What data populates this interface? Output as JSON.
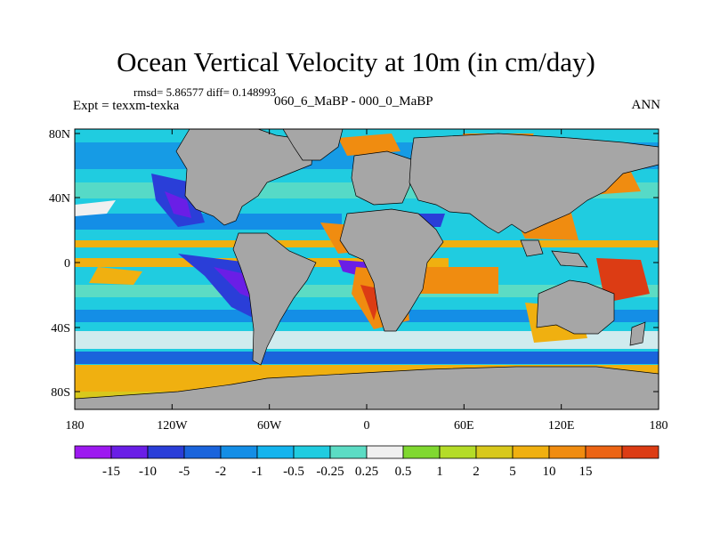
{
  "title": "Ocean Vertical Velocity at 10m (in cm/day)",
  "stats": "rmsd= 5.86577 diff= 0.148993",
  "experiment": "Expt = texxm-texka",
  "case_label": "060_6_MaBP - 000_0_MaBP",
  "season": "ANN",
  "lat_ticks": [
    "80N",
    "40N",
    "0",
    "40S",
    "80S"
  ],
  "lon_ticks": [
    "180",
    "120W",
    "60W",
    "0",
    "60E",
    "120E",
    "180"
  ],
  "colorbar": {
    "colors": [
      "#9d19f0",
      "#6a1ee6",
      "#2a3ed8",
      "#1a64dc",
      "#148ee6",
      "#14b4ee",
      "#20cce0",
      "#5cdcc4",
      "#f0f0f0",
      "#80d830",
      "#b4dc28",
      "#d8c81c",
      "#f0b010",
      "#f08c10",
      "#ec6414",
      "#dc3c14"
    ],
    "labels": [
      "-15",
      "-10",
      "-5",
      "-2",
      "-1",
      "-0.5",
      "-0.25",
      "0.25",
      "0.5",
      "1",
      "2",
      "5",
      "10",
      "15"
    ]
  }
}
